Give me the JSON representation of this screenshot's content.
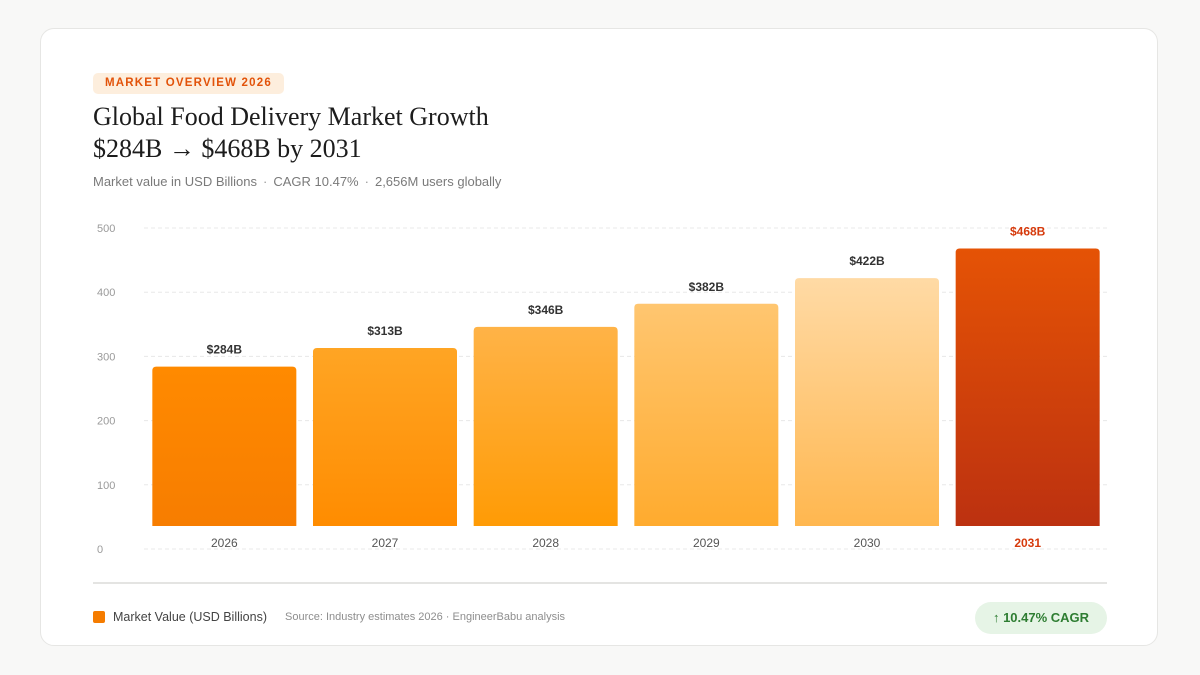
{
  "header": {
    "badge": "MARKET OVERVIEW 2026",
    "title_line1": "Global Food Delivery Market Growth",
    "title_line2": "$284B → $468B by 2031",
    "subtitle_parts": [
      "Market value in USD Billions",
      "CAGR 10.47%",
      "2,656M users globally"
    ],
    "separator": "·"
  },
  "chart_data": {
    "type": "bar",
    "categories": [
      "2026",
      "2027",
      "2028",
      "2029",
      "2030",
      "2031"
    ],
    "series": [
      {
        "name": "Market Value (USD Billions)",
        "values": [
          284,
          313,
          346,
          382,
          422,
          468
        ]
      }
    ],
    "data_labels": [
      "$284B",
      "$313B",
      "$346B",
      "$382B",
      "$422B",
      "$468B"
    ],
    "y_ticks": [
      0,
      100,
      200,
      300,
      400,
      500
    ],
    "ylim": [
      0,
      500
    ],
    "grid": true,
    "highlight_index": 5,
    "colors": {
      "bar_gradients": [
        [
          "#ff8a00",
          "#f77d00"
        ],
        [
          "#ffa524",
          "#ff8c00"
        ],
        [
          "#ffb347",
          "#ff9b05"
        ],
        [
          "#ffc670",
          "#ffab2e"
        ],
        [
          "#ffdaa5",
          "#ffb74f"
        ],
        [
          "#e55305",
          "#bc3110"
        ]
      ],
      "highlight_label": "#d63a0c",
      "label": "#333333",
      "tick": "#9a9a9a",
      "grid": "#e8e8e8"
    }
  },
  "footer": {
    "legend_label": "Market Value (USD Billions)",
    "legend_color": "#f57c00",
    "source": "Source: Industry estimates 2026 · EngineerBabu analysis",
    "cagr_badge": "↑ 10.47% CAGR"
  }
}
